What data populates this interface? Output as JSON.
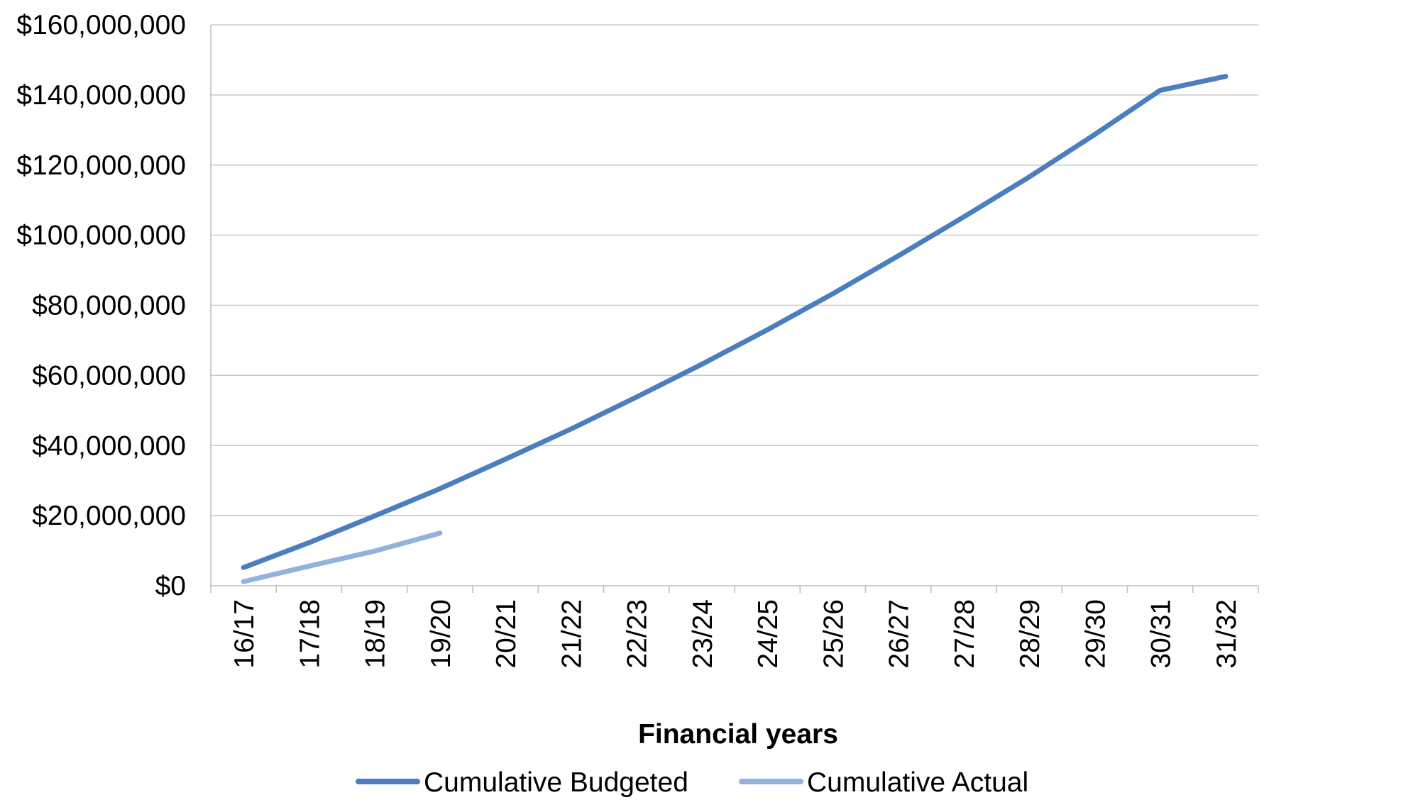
{
  "chart_data": {
    "type": "line",
    "title": "",
    "xlabel": "Financial years",
    "ylabel": "",
    "categories": [
      "16/17",
      "17/18",
      "18/19",
      "19/20",
      "20/21",
      "21/22",
      "22/23",
      "23/24",
      "24/25",
      "25/26",
      "26/27",
      "27/28",
      "28/29",
      "29/30",
      "30/31",
      "31/32"
    ],
    "yticks": [
      "$0",
      "$20,000,000",
      "$40,000,000",
      "$60,000,000",
      "$80,000,000",
      "$100,000,000",
      "$120,000,000",
      "$140,000,000",
      "$160,000,000"
    ],
    "ylim": [
      0,
      160000000
    ],
    "grid": true,
    "legend_position": "bottom",
    "series": [
      {
        "name": "Cumulative Budgeted",
        "color": "#4a7ebf",
        "values": [
          5200000,
          12300000,
          19900000,
          27700000,
          36100000,
          44700000,
          53800000,
          63200000,
          73000000,
          83300000,
          94100000,
          105200000,
          116600000,
          128700000,
          141300000,
          145300000
        ]
      },
      {
        "name": "Cumulative Actual",
        "color": "#92b2dc",
        "values": [
          1200000,
          5600000,
          9900000,
          15000000,
          null,
          null,
          null,
          null,
          null,
          null,
          null,
          null,
          null,
          null,
          null,
          null
        ]
      }
    ]
  }
}
